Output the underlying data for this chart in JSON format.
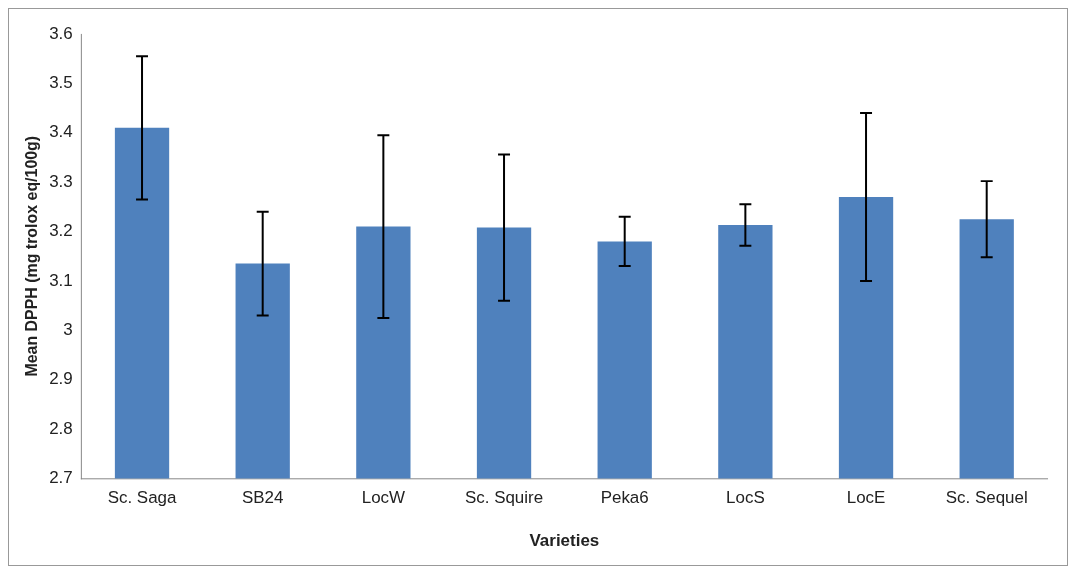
{
  "chart_data": {
    "type": "bar",
    "xlabel": "Varieties",
    "ylabel": "Mean DPPH (mg trolox eq/100g)",
    "categories": [
      "Sc. Saga",
      "SB24",
      "LocW",
      "Sc. Squire",
      "Peka6",
      "LocS",
      "LocE",
      "Sc. Sequel"
    ],
    "values": [
      3.41,
      3.135,
      3.21,
      3.208,
      3.18,
      3.213,
      3.27,
      3.225
    ],
    "errors": [
      0.145,
      0.105,
      0.185,
      0.148,
      0.05,
      0.042,
      0.17,
      0.077
    ],
    "color": "#4f81bd",
    "ylim": [
      2.7,
      3.6
    ],
    "yticks": [
      2.7,
      2.8,
      2.9,
      3,
      3.1,
      3.2,
      3.3,
      3.4,
      3.5,
      3.6
    ],
    "grid": false,
    "legend": false
  }
}
